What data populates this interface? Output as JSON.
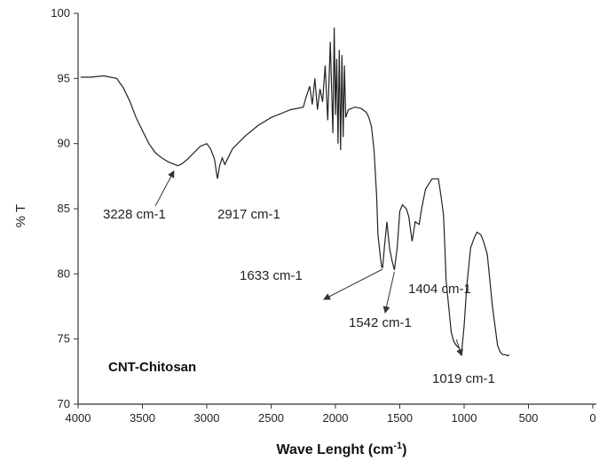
{
  "chart_data": {
    "type": "line",
    "xlabel": "Wave Lenght (cm",
    "xlabel_sup": "-1",
    "xlabel_close": ")",
    "ylabel": "% T",
    "xlim": [
      4000,
      0
    ],
    "ylim": [
      70,
      100
    ],
    "x_ticks": [
      "4000",
      "3500",
      "3000",
      "2500",
      "2000",
      "1500",
      "1000",
      "500",
      "0"
    ],
    "y_ticks": [
      "70",
      "75",
      "80",
      "85",
      "90",
      "95",
      "100"
    ],
    "sample_label": "CNT-Chitosan",
    "series": [
      {
        "color": "#222222",
        "x": [
          3980,
          3900,
          3800,
          3700,
          3650,
          3600,
          3550,
          3500,
          3450,
          3400,
          3350,
          3300,
          3250,
          3228,
          3200,
          3150,
          3100,
          3050,
          3000,
          2970,
          2940,
          2917,
          2900,
          2880,
          2860,
          2840,
          2800,
          2700,
          2600,
          2500,
          2400,
          2350,
          2300,
          2250,
          2230,
          2200,
          2180,
          2160,
          2140,
          2120,
          2100,
          2080,
          2060,
          2040,
          2020,
          2010,
          2000,
          1990,
          1980,
          1970,
          1960,
          1950,
          1940,
          1930,
          1920,
          1900,
          1850,
          1800,
          1760,
          1740,
          1720,
          1700,
          1680,
          1670,
          1650,
          1640,
          1633,
          1620,
          1600,
          1580,
          1560,
          1542,
          1520,
          1500,
          1480,
          1450,
          1430,
          1404,
          1380,
          1350,
          1330,
          1300,
          1250,
          1200,
          1180,
          1160,
          1150,
          1140,
          1120,
          1100,
          1080,
          1060,
          1040,
          1019,
          1000,
          980,
          950,
          920,
          900,
          870,
          850,
          820,
          800,
          780,
          760,
          740,
          720,
          700,
          680,
          660,
          650
        ],
        "y": [
          95.1,
          95.1,
          95.2,
          95.0,
          94.3,
          93.3,
          92.0,
          91.0,
          90.0,
          89.3,
          88.9,
          88.6,
          88.4,
          88.3,
          88.4,
          88.8,
          89.3,
          89.8,
          90.0,
          89.6,
          88.8,
          87.3,
          88.3,
          88.9,
          88.4,
          88.8,
          89.6,
          90.6,
          91.4,
          92.0,
          92.4,
          92.6,
          92.7,
          92.8,
          93.5,
          94.4,
          93.0,
          95.0,
          92.6,
          94.2,
          93.2,
          96.0,
          91.8,
          97.8,
          90.8,
          98.9,
          92.2,
          96.5,
          90.0,
          97.2,
          89.5,
          96.8,
          90.5,
          96.0,
          92.0,
          92.6,
          92.8,
          92.7,
          92.4,
          92.0,
          91.3,
          89.5,
          86.0,
          83.0,
          81.2,
          80.5,
          80.5,
          82.0,
          84.0,
          82.0,
          81.0,
          80.3,
          82.0,
          84.8,
          85.3,
          85.0,
          84.4,
          82.5,
          84.0,
          83.8,
          85.0,
          86.5,
          87.3,
          87.3,
          86.0,
          84.5,
          82.0,
          79.5,
          77.5,
          75.5,
          74.8,
          74.5,
          74.3,
          74.0,
          76.0,
          79.0,
          82.0,
          82.8,
          83.2,
          83.0,
          82.5,
          81.5,
          79.5,
          77.5,
          76.0,
          74.5,
          74.0,
          73.8,
          73.8,
          73.7,
          73.8
        ]
      }
    ],
    "annotations": [
      {
        "text": "3228 cm-1",
        "x": 3228,
        "y": 88.3
      },
      {
        "text": "2917 cm-1",
        "x": 2917,
        "y": 87.3
      },
      {
        "text": "1633 cm-1",
        "x": 1633,
        "y": 80.5
      },
      {
        "text": "1542 cm-1",
        "x": 1542,
        "y": 80.3
      },
      {
        "text": "1404 cm-1",
        "x": 1404,
        "y": 82.5
      },
      {
        "text": "1019 cm-1",
        "x": 1019,
        "y": 74.0
      }
    ]
  }
}
